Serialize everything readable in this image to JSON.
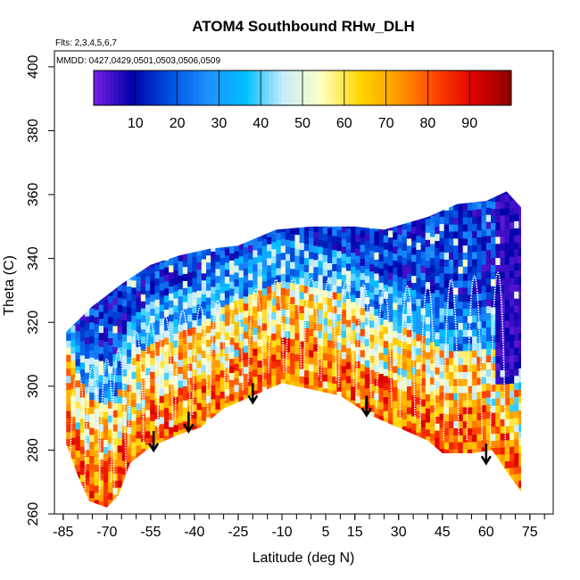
{
  "chart_data": {
    "type": "heatmap",
    "title": "ATOM4 Southbound RHw_DLH",
    "flights_note": "Flts: 2,3,4,5,6,7",
    "dates_note": "MMDD: 0427,0429,0501,0503,0506,0509",
    "xlabel": "Latitude (deg N)",
    "ylabel": "Theta (C)",
    "xlim": [
      -88,
      83
    ],
    "ylim": [
      260,
      405
    ],
    "x_ticks": [
      -85,
      -70,
      -55,
      -40,
      -25,
      -10,
      5,
      15,
      30,
      45,
      60,
      75
    ],
    "y_ticks": [
      260,
      280,
      300,
      320,
      340,
      360,
      380,
      400
    ],
    "colorbar": {
      "range": [
        0,
        100
      ],
      "ticks": [
        10,
        20,
        30,
        40,
        50,
        60,
        70,
        80,
        90
      ],
      "colors": [
        "#7a1fe6",
        "#0000a8",
        "#0050e0",
        "#1e90ff",
        "#00bfff",
        "#c8ecff",
        "#ffffc0",
        "#ffd700",
        "#ff9a00",
        "#ff4500",
        "#e00000",
        "#900000"
      ]
    },
    "data_extent": {
      "lat_min": -84,
      "lat_max": 72,
      "bottom_envelope": [
        [
          -84,
          282
        ],
        [
          -80,
          272
        ],
        [
          -76,
          264
        ],
        [
          -70,
          262
        ],
        [
          -66,
          266
        ],
        [
          -62,
          276
        ],
        [
          -55,
          281
        ],
        [
          -45,
          285
        ],
        [
          -38,
          287
        ],
        [
          -30,
          293
        ],
        [
          -20,
          297
        ],
        [
          -10,
          301
        ],
        [
          0,
          299
        ],
        [
          10,
          297
        ],
        [
          20,
          291
        ],
        [
          30,
          287
        ],
        [
          40,
          283
        ],
        [
          45,
          279
        ],
        [
          55,
          279
        ],
        [
          62,
          280
        ],
        [
          68,
          272
        ],
        [
          72,
          267
        ]
      ],
      "top_envelope": [
        [
          -84,
          317
        ],
        [
          -75,
          325
        ],
        [
          -65,
          332
        ],
        [
          -55,
          338
        ],
        [
          -45,
          341
        ],
        [
          -35,
          343
        ],
        [
          -25,
          344
        ],
        [
          -12,
          349
        ],
        [
          0,
          350
        ],
        [
          15,
          350
        ],
        [
          25,
          349
        ],
        [
          40,
          353
        ],
        [
          50,
          357
        ],
        [
          60,
          358
        ],
        [
          67,
          361
        ],
        [
          72,
          356
        ]
      ]
    },
    "arrows": [
      {
        "lat": -54,
        "theta": 286
      },
      {
        "lat": -42,
        "theta": 292
      },
      {
        "lat": -20,
        "theta": 301
      },
      {
        "lat": 19,
        "theta": 297
      },
      {
        "lat": 60,
        "theta": 282
      }
    ]
  }
}
